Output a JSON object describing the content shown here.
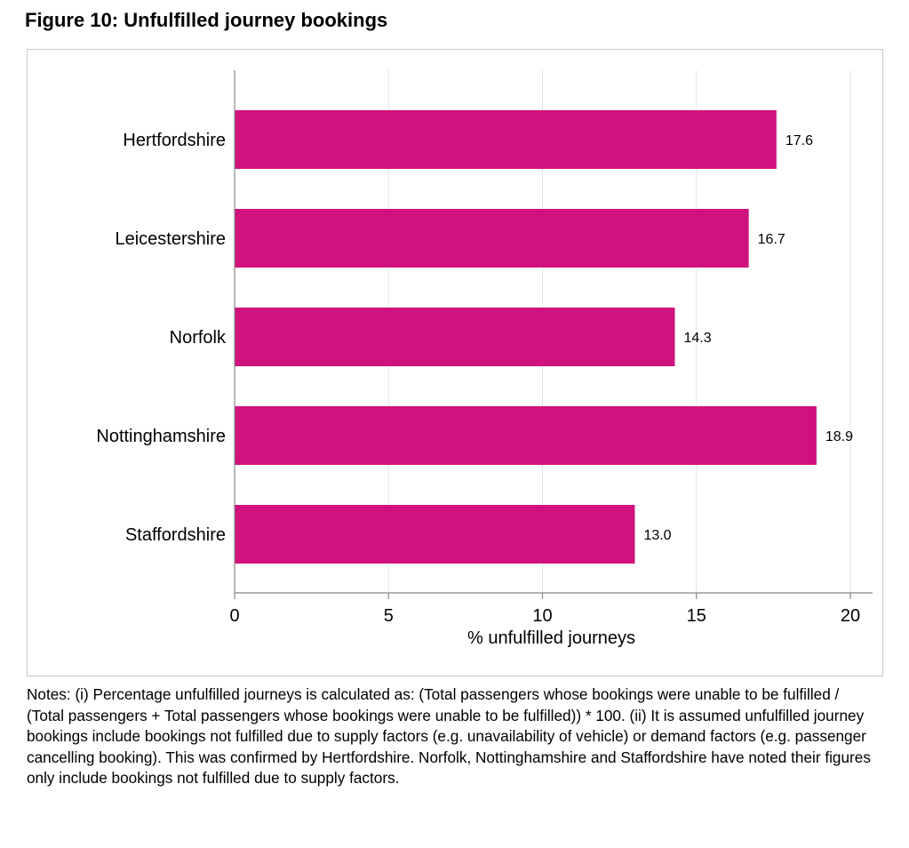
{
  "figure_title": "Figure 10: Unfulfilled journey bookings",
  "notes": "Notes: (i) Percentage unfulfilled journeys is calculated as: (Total passengers whose bookings were unable to be fulfilled / (Total passengers + Total passengers whose bookings were unable to be fulfilled)) * 100. (ii) It is assumed unfulfilled journey bookings include bookings not fulfilled due to supply factors (e.g. unavailability of vehicle) or demand factors (e.g. passenger cancelling booking). This was confirmed by Hertfordshire. Norfolk, Nottinghamshire and Staffordshire have noted their figures only include bookings not fulfilled due to supply factors.",
  "colors": {
    "bar": "#d0127e",
    "grid": "#dde7ea",
    "axis": "#888888"
  },
  "chart_data": {
    "type": "bar",
    "orientation": "horizontal",
    "categories": [
      "Hertfordshire",
      "Leicestershire",
      "Norfolk",
      "Nottinghamshire",
      "Staffordshire"
    ],
    "values": [
      17.6,
      16.7,
      14.3,
      18.9,
      13.0
    ],
    "value_labels": [
      "17.6",
      "16.7",
      "14.3",
      "18.9",
      "13.0"
    ],
    "xlabel": "% unfulfilled journeys",
    "ylabel": "",
    "xlim": [
      0,
      20
    ],
    "xticks": [
      0,
      5,
      10,
      15,
      20
    ],
    "grid": true
  }
}
